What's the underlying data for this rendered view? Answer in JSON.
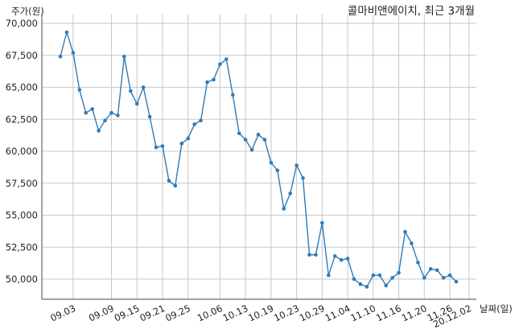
{
  "chart_data": {
    "type": "line",
    "title": "콜마비앤에이치, 최근 3개월",
    "ylabel": "주가(원)",
    "xlabel": "날짜(일)",
    "ylim": [
      48500,
      70000
    ],
    "yticks": [
      50000,
      52500,
      55000,
      57500,
      60000,
      62500,
      65000,
      67500,
      70000
    ],
    "ytick_labels": [
      "50,000",
      "52,500",
      "55,000",
      "57,500",
      "60,000",
      "62,500",
      "65,000",
      "67,500",
      "70,000"
    ],
    "xtick_positions": [
      2,
      8,
      12,
      16,
      20,
      25,
      29,
      33,
      37,
      41,
      45,
      49,
      53,
      57,
      61,
      64
    ],
    "xtick_labels": [
      "09.03",
      "09.09",
      "09.15",
      "09.21",
      "09.25",
      "10.06",
      "10.13",
      "10.19",
      "10.23",
      "10.29",
      "11.04",
      "11.10",
      "11.16",
      "11.20",
      "11.26",
      "20.12.02"
    ],
    "grid": true,
    "color": "#2f7bb8",
    "values": [
      67400,
      69300,
      67700,
      64800,
      63000,
      63300,
      61600,
      62400,
      63000,
      62800,
      67400,
      64700,
      63700,
      65000,
      62700,
      60300,
      60400,
      57700,
      57300,
      60600,
      61000,
      62100,
      62400,
      65400,
      65600,
      66800,
      67200,
      64400,
      61400,
      60900,
      60100,
      61300,
      60900,
      59100,
      58500,
      55500,
      56700,
      58900,
      57900,
      51900,
      51900,
      54400,
      50300,
      51800,
      51500,
      51600,
      50000,
      49600,
      49400,
      50300,
      50300,
      49500,
      50100,
      50500,
      53700,
      52800,
      51300,
      50100,
      50800,
      50700,
      50100,
      50300,
      49800
    ]
  }
}
